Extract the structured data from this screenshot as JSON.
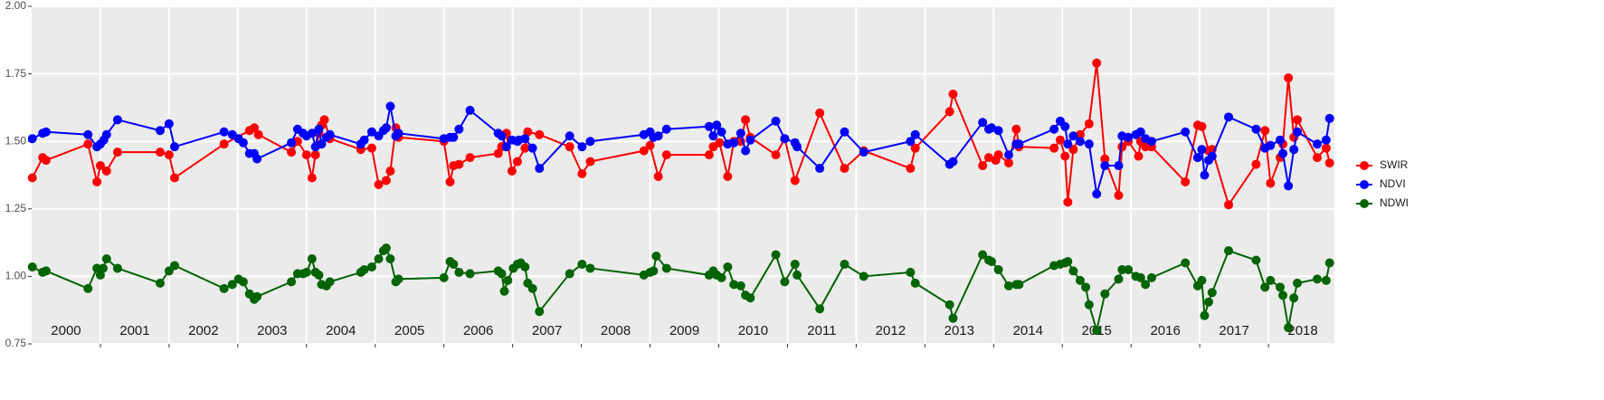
{
  "chart_data": {
    "type": "line",
    "xlim": [
      2000,
      2018.96
    ],
    "ylim": [
      0.75,
      2.0
    ],
    "yticks": [
      0.75,
      {
        "value": 1,
        "label": "1.00"
      },
      1.25,
      {
        "value": 1.5,
        "label": "1.50"
      },
      1.75,
      {
        "value": 2,
        "label": "2.00"
      }
    ],
    "grid_breaks": [
      2001,
      2002,
      2003,
      2004,
      2005,
      2006,
      2007,
      2008,
      2009,
      2010,
      2011,
      2012,
      2013,
      2014,
      2015,
      2016,
      2017,
      2018
    ],
    "xticks": [
      {
        "value": 2000.5,
        "label": "2000"
      },
      {
        "value": 2001.5,
        "label": "2001"
      },
      {
        "value": 2002.5,
        "label": "2002"
      },
      {
        "value": 2003.5,
        "label": "2003"
      },
      {
        "value": 2004.5,
        "label": "2004"
      },
      {
        "value": 2005.5,
        "label": "2005"
      },
      {
        "value": 2006.5,
        "label": "2006"
      },
      {
        "value": 2007.5,
        "label": "2007"
      },
      {
        "value": 2008.5,
        "label": "2008"
      },
      {
        "value": 2009.5,
        "label": "2009"
      },
      {
        "value": 2010.5,
        "label": "2010"
      },
      {
        "value": 2011.5,
        "label": "2011"
      },
      {
        "value": 2012.5,
        "label": "2012"
      },
      {
        "value": 2013.5,
        "label": "2013"
      },
      {
        "value": 2014.5,
        "label": "2014"
      },
      {
        "value": 2015.5,
        "label": "2015"
      },
      {
        "value": 2016.5,
        "label": "2016"
      },
      {
        "value": 2017.5,
        "label": "2017"
      },
      {
        "value": 2018.5,
        "label": "2018"
      }
    ],
    "grid": true,
    "legend": "right",
    "series": [
      {
        "name": "SWIR",
        "color": "#ff0000",
        "x": [
          2000.01,
          2000.16,
          2000.21,
          2000.82,
          2000.95,
          2001.0,
          2001.09,
          2001.25,
          2001.87,
          2002.0,
          2002.08,
          2002.8,
          2003.17,
          2003.24,
          2003.3,
          2003.78,
          2003.87,
          2004.0,
          2004.08,
          2004.13,
          2004.18,
          2004.22,
          2004.26,
          2004.34,
          2004.79,
          2004.95,
          2005.05,
          2005.16,
          2005.22,
          2005.3,
          2005.34,
          2006.0,
          2006.09,
          2006.14,
          2006.22,
          2006.38,
          2006.79,
          2006.84,
          2006.91,
          2006.99,
          2007.07,
          2007.18,
          2007.22,
          2007.39,
          2007.83,
          2008.01,
          2008.13,
          2008.91,
          2009.0,
          2009.12,
          2009.24,
          2009.86,
          2009.92,
          2010.01,
          2010.13,
          2010.22,
          2010.32,
          2010.39,
          2010.46,
          2010.83,
          2010.96,
          2011.11,
          2011.47,
          2011.83,
          2012.11,
          2012.79,
          2012.86,
          2013.36,
          2013.41,
          2013.84,
          2013.93,
          2014.03,
          2014.07,
          2014.22,
          2014.33,
          2014.37,
          2014.88,
          2014.97,
          2015.04,
          2015.08,
          2015.16,
          2015.26,
          2015.39,
          2015.5,
          2015.62,
          2015.82,
          2015.87,
          2015.96,
          2016.11,
          2016.14,
          2016.21,
          2016.3,
          2016.79,
          2016.97,
          2017.03,
          2017.13,
          2017.18,
          2017.42,
          2017.82,
          2017.95,
          2018.03,
          2018.17,
          2018.21,
          2018.29,
          2018.37,
          2018.42,
          2018.71,
          2018.84,
          2018.89
        ],
        "values": [
          1.365,
          1.44,
          1.43,
          1.49,
          1.35,
          1.41,
          1.39,
          1.46,
          1.46,
          1.45,
          1.365,
          1.49,
          1.54,
          1.55,
          1.525,
          1.46,
          1.5,
          1.45,
          1.365,
          1.45,
          1.53,
          1.56,
          1.58,
          1.51,
          1.47,
          1.475,
          1.34,
          1.355,
          1.39,
          1.55,
          1.515,
          1.5,
          1.35,
          1.41,
          1.415,
          1.44,
          1.455,
          1.48,
          1.53,
          1.39,
          1.425,
          1.475,
          1.535,
          1.525,
          1.48,
          1.38,
          1.425,
          1.465,
          1.485,
          1.37,
          1.45,
          1.45,
          1.48,
          1.495,
          1.37,
          1.5,
          1.5,
          1.58,
          1.515,
          1.45,
          1.51,
          1.355,
          1.605,
          1.4,
          1.465,
          1.4,
          1.475,
          1.61,
          1.675,
          1.41,
          1.44,
          1.43,
          1.45,
          1.42,
          1.545,
          1.48,
          1.475,
          1.505,
          1.445,
          1.275,
          1.47,
          1.525,
          1.565,
          1.79,
          1.435,
          1.3,
          1.48,
          1.5,
          1.445,
          1.5,
          1.48,
          1.48,
          1.35,
          1.56,
          1.555,
          1.465,
          1.47,
          1.265,
          1.415,
          1.54,
          1.345,
          1.44,
          1.49,
          1.735,
          1.515,
          1.58,
          1.44,
          1.475,
          1.42
        ]
      },
      {
        "name": "NDVI",
        "color": "#0000ff",
        "x": [
          2000.01,
          2000.16,
          2000.21,
          2000.82,
          2000.95,
          2001.0,
          2001.05,
          2001.09,
          2001.25,
          2001.87,
          2002.0,
          2002.08,
          2002.8,
          2002.92,
          2003.01,
          2003.08,
          2003.17,
          2003.24,
          2003.28,
          2003.78,
          2003.87,
          2003.95,
          2004.0,
          2004.08,
          2004.13,
          2004.18,
          2004.22,
          2004.29,
          2004.34,
          2004.79,
          2004.84,
          2004.95,
          2005.05,
          2005.12,
          2005.16,
          2005.22,
          2005.3,
          2005.34,
          2006.0,
          2006.09,
          2006.14,
          2006.22,
          2006.38,
          2006.79,
          2006.84,
          2006.91,
          2006.99,
          2007.07,
          2007.09,
          2007.18,
          2007.29,
          2007.39,
          2007.83,
          2008.01,
          2008.13,
          2008.91,
          2009.0,
          2009.05,
          2009.12,
          2009.24,
          2009.86,
          2009.92,
          2009.97,
          2010.04,
          2010.13,
          2010.22,
          2010.32,
          2010.39,
          2010.46,
          2010.83,
          2010.96,
          2011.11,
          2011.14,
          2011.47,
          2011.83,
          2012.11,
          2012.79,
          2012.86,
          2013.36,
          2013.41,
          2013.84,
          2013.93,
          2013.97,
          2014.07,
          2014.22,
          2014.33,
          2014.37,
          2014.88,
          2014.97,
          2015.04,
          2015.08,
          2015.16,
          2015.26,
          2015.39,
          2015.5,
          2015.62,
          2015.82,
          2015.87,
          2015.96,
          2016.07,
          2016.14,
          2016.21,
          2016.3,
          2016.79,
          2016.97,
          2017.03,
          2017.07,
          2017.13,
          2017.18,
          2017.42,
          2017.82,
          2017.95,
          2018.03,
          2018.17,
          2018.21,
          2018.29,
          2018.37,
          2018.42,
          2018.71,
          2018.84,
          2018.89
        ],
        "values": [
          1.51,
          1.53,
          1.535,
          1.525,
          1.48,
          1.49,
          1.505,
          1.525,
          1.58,
          1.54,
          1.565,
          1.48,
          1.535,
          1.525,
          1.51,
          1.495,
          1.455,
          1.455,
          1.435,
          1.495,
          1.545,
          1.53,
          1.52,
          1.53,
          1.48,
          1.545,
          1.49,
          1.515,
          1.525,
          1.49,
          1.505,
          1.535,
          1.52,
          1.54,
          1.55,
          1.63,
          1.52,
          1.53,
          1.51,
          1.515,
          1.515,
          1.545,
          1.615,
          1.53,
          1.52,
          1.48,
          1.505,
          1.5,
          1.505,
          1.51,
          1.475,
          1.4,
          1.52,
          1.48,
          1.5,
          1.525,
          1.535,
          1.515,
          1.52,
          1.545,
          1.555,
          1.52,
          1.56,
          1.535,
          1.49,
          1.495,
          1.53,
          1.465,
          1.505,
          1.575,
          1.51,
          1.495,
          1.48,
          1.4,
          1.535,
          1.46,
          1.5,
          1.525,
          1.415,
          1.425,
          1.57,
          1.545,
          1.55,
          1.54,
          1.45,
          1.49,
          1.49,
          1.545,
          1.575,
          1.555,
          1.49,
          1.52,
          1.5,
          1.49,
          1.305,
          1.41,
          1.41,
          1.52,
          1.515,
          1.525,
          1.535,
          1.51,
          1.5,
          1.535,
          1.44,
          1.47,
          1.375,
          1.43,
          1.445,
          1.59,
          1.545,
          1.475,
          1.485,
          1.505,
          1.455,
          1.335,
          1.47,
          1.535,
          1.49,
          1.505,
          1.585
        ]
      },
      {
        "name": "NDWI",
        "color": "#006400",
        "x": [
          2000.01,
          2000.16,
          2000.21,
          2000.82,
          2000.95,
          2001.0,
          2001.04,
          2001.09,
          2001.25,
          2001.87,
          2002.0,
          2002.08,
          2002.8,
          2002.92,
          2003.01,
          2003.08,
          2003.17,
          2003.24,
          2003.28,
          2003.78,
          2003.87,
          2003.95,
          2004.0,
          2004.08,
          2004.13,
          2004.18,
          2004.22,
          2004.29,
          2004.34,
          2004.79,
          2004.84,
          2004.95,
          2005.05,
          2005.12,
          2005.16,
          2005.22,
          2005.3,
          2005.34,
          2006.0,
          2006.09,
          2006.14,
          2006.22,
          2006.38,
          2006.79,
          2006.84,
          2006.88,
          2006.93,
          2007.01,
          2007.07,
          2007.12,
          2007.18,
          2007.22,
          2007.29,
          2007.39,
          2007.83,
          2008.01,
          2008.13,
          2008.91,
          2009.0,
          2009.05,
          2009.09,
          2009.24,
          2009.86,
          2009.92,
          2009.97,
          2010.04,
          2010.13,
          2010.22,
          2010.32,
          2010.39,
          2010.46,
          2010.83,
          2010.96,
          2011.11,
          2011.14,
          2011.47,
          2011.83,
          2012.11,
          2012.79,
          2012.86,
          2013.36,
          2013.41,
          2013.84,
          2013.93,
          2013.97,
          2014.07,
          2014.22,
          2014.33,
          2014.37,
          2014.88,
          2014.97,
          2015.04,
          2015.08,
          2015.16,
          2015.26,
          2015.34,
          2015.39,
          2015.5,
          2015.62,
          2015.82,
          2015.87,
          2015.96,
          2016.07,
          2016.14,
          2016.21,
          2016.3,
          2016.79,
          2016.97,
          2017.03,
          2017.07,
          2017.13,
          2017.18,
          2017.42,
          2017.82,
          2017.95,
          2018.03,
          2018.17,
          2018.21,
          2018.29,
          2018.37,
          2018.42,
          2018.71,
          2018.84,
          2018.89
        ],
        "values": [
          1.035,
          1.015,
          1.02,
          0.955,
          1.03,
          1.005,
          1.03,
          1.065,
          1.03,
          0.975,
          1.02,
          1.04,
          0.955,
          0.97,
          0.99,
          0.98,
          0.935,
          0.915,
          0.925,
          0.98,
          1.01,
          1.01,
          1.015,
          1.065,
          1.015,
          1.005,
          0.97,
          0.965,
          0.98,
          1.015,
          1.025,
          1.035,
          1.065,
          1.095,
          1.105,
          1.065,
          0.98,
          0.99,
          0.995,
          1.055,
          1.045,
          1.015,
          1.01,
          1.02,
          1.01,
          0.945,
          0.985,
          1.03,
          1.045,
          1.05,
          1.035,
          0.975,
          0.955,
          0.87,
          1.01,
          1.045,
          1.03,
          1.005,
          1.015,
          1.02,
          1.075,
          1.03,
          1.005,
          1.02,
          1.005,
          0.995,
          1.035,
          0.97,
          0.965,
          0.93,
          0.92,
          1.08,
          0.98,
          1.045,
          1.005,
          0.88,
          1.045,
          1.0,
          1.015,
          0.975,
          0.895,
          0.845,
          1.08,
          1.06,
          1.055,
          1.025,
          0.965,
          0.97,
          0.97,
          1.04,
          1.045,
          1.05,
          1.055,
          1.02,
          0.985,
          0.96,
          0.895,
          0.8,
          0.935,
          0.99,
          1.025,
          1.025,
          1.0,
          0.995,
          0.97,
          0.995,
          1.05,
          0.965,
          0.985,
          0.855,
          0.905,
          0.94,
          1.095,
          1.06,
          0.96,
          0.985,
          0.96,
          0.93,
          0.81,
          0.92,
          0.975,
          0.99,
          0.985,
          1.05
        ]
      }
    ]
  }
}
